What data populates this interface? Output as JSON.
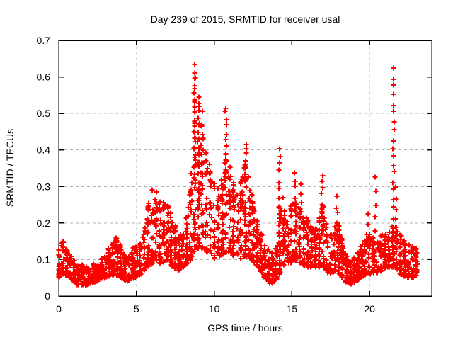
{
  "figure": {
    "background": "#ffffff",
    "text_color": "#000000",
    "border_color": "#000000"
  },
  "chart_data": {
    "type": "scatter",
    "title": "Day 239 of 2015, SRMTID for receiver usal",
    "xlabel": "GPS time / hours",
    "ylabel": "SRMTID / TECUs",
    "xlim": [
      0,
      24
    ],
    "ylim": [
      0,
      0.7
    ],
    "xticks": {
      "values": [
        0,
        5,
        10,
        15,
        20
      ],
      "labels": [
        "0",
        "5",
        "10",
        "15",
        "20"
      ]
    },
    "yticks": {
      "values": [
        0,
        0.1,
        0.2,
        0.3,
        0.4,
        0.5,
        0.6,
        0.7
      ],
      "labels": [
        "0",
        "0.1",
        "0.2",
        "0.3",
        "0.4",
        "0.5",
        "0.6",
        "0.7"
      ]
    },
    "grid": {
      "show": true,
      "style": "dashed",
      "color": "#b0b0b0"
    },
    "legend": {
      "show": false
    },
    "marker": "plus",
    "series": [
      {
        "name": "SRMTID",
        "color": "#ff0000",
        "points_are_approximate": true,
        "x_data_range": [
          0,
          23.1
        ],
        "envelope": [
          [
            0.0,
            0.05,
            0.13
          ],
          [
            0.3,
            0.06,
            0.155
          ],
          [
            0.7,
            0.05,
            0.12
          ],
          [
            1.2,
            0.03,
            0.09
          ],
          [
            1.8,
            0.03,
            0.08
          ],
          [
            2.4,
            0.04,
            0.09
          ],
          [
            3.0,
            0.05,
            0.11
          ],
          [
            3.6,
            0.06,
            0.17
          ],
          [
            4.0,
            0.05,
            0.14
          ],
          [
            4.4,
            0.04,
            0.1
          ],
          [
            4.9,
            0.05,
            0.14
          ],
          [
            5.3,
            0.06,
            0.15
          ],
          [
            5.7,
            0.08,
            0.24
          ],
          [
            6.1,
            0.09,
            0.31
          ],
          [
            6.5,
            0.09,
            0.26
          ],
          [
            6.9,
            0.09,
            0.26
          ],
          [
            7.3,
            0.08,
            0.22
          ],
          [
            7.7,
            0.07,
            0.17
          ],
          [
            8.1,
            0.08,
            0.17
          ],
          [
            8.5,
            0.1,
            0.32
          ],
          [
            8.8,
            0.13,
            0.56
          ],
          [
            9.1,
            0.13,
            0.52
          ],
          [
            9.4,
            0.12,
            0.42
          ],
          [
            9.7,
            0.12,
            0.36
          ],
          [
            10.0,
            0.1,
            0.31
          ],
          [
            10.4,
            0.11,
            0.3
          ],
          [
            10.8,
            0.12,
            0.4
          ],
          [
            11.2,
            0.11,
            0.32
          ],
          [
            11.6,
            0.1,
            0.29
          ],
          [
            12.0,
            0.11,
            0.38
          ],
          [
            12.4,
            0.1,
            0.3
          ],
          [
            12.8,
            0.08,
            0.22
          ],
          [
            13.2,
            0.05,
            0.14
          ],
          [
            13.7,
            0.03,
            0.12
          ],
          [
            14.1,
            0.05,
            0.15
          ],
          [
            14.35,
            0.07,
            0.3
          ],
          [
            14.7,
            0.08,
            0.22
          ],
          [
            15.1,
            0.1,
            0.28
          ],
          [
            15.5,
            0.09,
            0.25
          ],
          [
            16.0,
            0.08,
            0.21
          ],
          [
            16.5,
            0.08,
            0.18
          ],
          [
            17.0,
            0.08,
            0.26
          ],
          [
            17.4,
            0.06,
            0.16
          ],
          [
            17.9,
            0.07,
            0.22
          ],
          [
            18.4,
            0.04,
            0.12
          ],
          [
            18.9,
            0.03,
            0.1
          ],
          [
            19.4,
            0.05,
            0.13
          ],
          [
            19.9,
            0.06,
            0.18
          ],
          [
            20.3,
            0.06,
            0.16
          ],
          [
            20.8,
            0.07,
            0.17
          ],
          [
            21.2,
            0.08,
            0.18
          ],
          [
            21.6,
            0.08,
            0.2
          ],
          [
            22.0,
            0.06,
            0.17
          ],
          [
            22.4,
            0.05,
            0.15
          ],
          [
            22.8,
            0.05,
            0.14
          ],
          [
            23.1,
            0.06,
            0.13
          ]
        ],
        "spikes": [
          {
            "x": 8.75,
            "base": 0.3,
            "top": 0.63,
            "n": 26
          },
          {
            "x": 9.0,
            "base": 0.25,
            "top": 0.55,
            "n": 16
          },
          {
            "x": 9.2,
            "base": 0.25,
            "top": 0.5,
            "n": 10
          },
          {
            "x": 10.75,
            "base": 0.28,
            "top": 0.52,
            "n": 14
          },
          {
            "x": 12.05,
            "base": 0.3,
            "top": 0.42,
            "n": 9
          },
          {
            "x": 14.2,
            "base": 0.15,
            "top": 0.41,
            "n": 12
          },
          {
            "x": 15.2,
            "base": 0.22,
            "top": 0.33,
            "n": 7
          },
          {
            "x": 15.6,
            "base": 0.2,
            "top": 0.3,
            "n": 5
          },
          {
            "x": 16.95,
            "base": 0.2,
            "top": 0.33,
            "n": 8
          },
          {
            "x": 17.9,
            "base": 0.15,
            "top": 0.27,
            "n": 6
          },
          {
            "x": 19.9,
            "base": 0.14,
            "top": 0.22,
            "n": 4
          },
          {
            "x": 20.35,
            "base": 0.18,
            "top": 0.32,
            "n": 5
          },
          {
            "x": 21.55,
            "base": 0.12,
            "top": 0.62,
            "n": 22
          },
          {
            "x": 21.7,
            "base": 0.1,
            "top": 0.3,
            "n": 8
          }
        ]
      }
    ],
    "generator": {
      "seed": 2015239,
      "n_base": 2300,
      "column_step": 0.25,
      "column_jitter": 0.14,
      "marker_half_size": 3.5,
      "marker_stroke_width": 2
    }
  }
}
